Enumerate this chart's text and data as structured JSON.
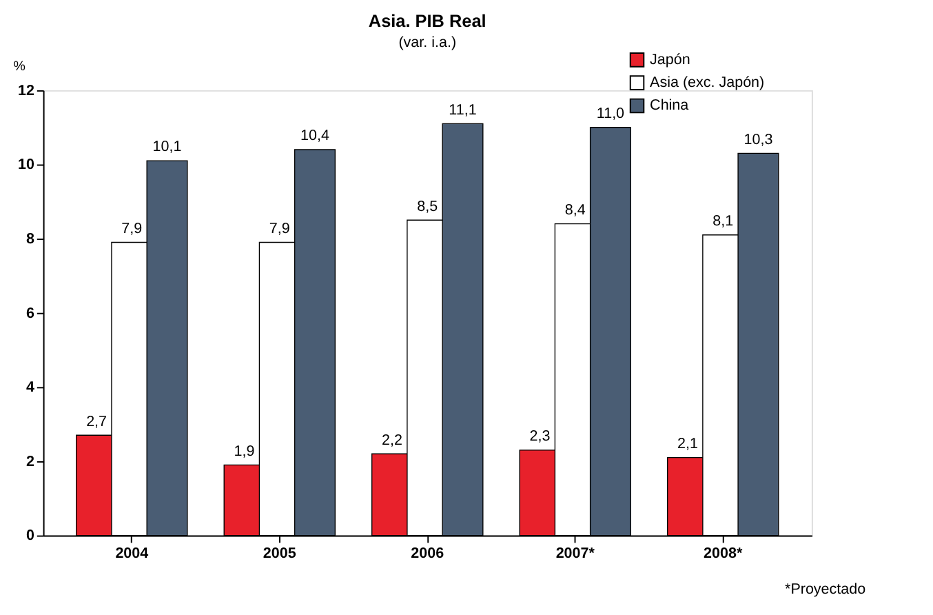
{
  "chart_data": {
    "type": "bar",
    "title": "Asia. PIB Real",
    "subtitle": "(var. i.a.)",
    "ylabel": "%",
    "categories": [
      "2004",
      "2005",
      "2006",
      "2007*",
      "2008*"
    ],
    "series": [
      {
        "name": "Japón",
        "color": "#e8212b",
        "values": [
          2.7,
          1.9,
          2.2,
          2.3,
          2.1
        ],
        "value_labels": [
          "2,7",
          "1,9",
          "2,2",
          "2,3",
          "2,1"
        ]
      },
      {
        "name": "Asia (exc. Japón)",
        "color": "#ffffff",
        "values": [
          7.9,
          7.9,
          8.5,
          8.4,
          8.1
        ],
        "value_labels": [
          "7,9",
          "7,9",
          "8,5",
          "8,4",
          "8,1"
        ]
      },
      {
        "name": "China",
        "color": "#4a5d74",
        "values": [
          10.1,
          10.4,
          11.1,
          11.0,
          10.3
        ],
        "value_labels": [
          "10,1",
          "10,4",
          "11,1",
          "11,0",
          "10,3"
        ]
      }
    ],
    "ylim": [
      0,
      12
    ],
    "yticks": [
      0,
      2,
      4,
      6,
      8,
      10,
      12
    ],
    "grid": false,
    "legend": "top right",
    "annotations": [
      "*Proyectado"
    ]
  }
}
